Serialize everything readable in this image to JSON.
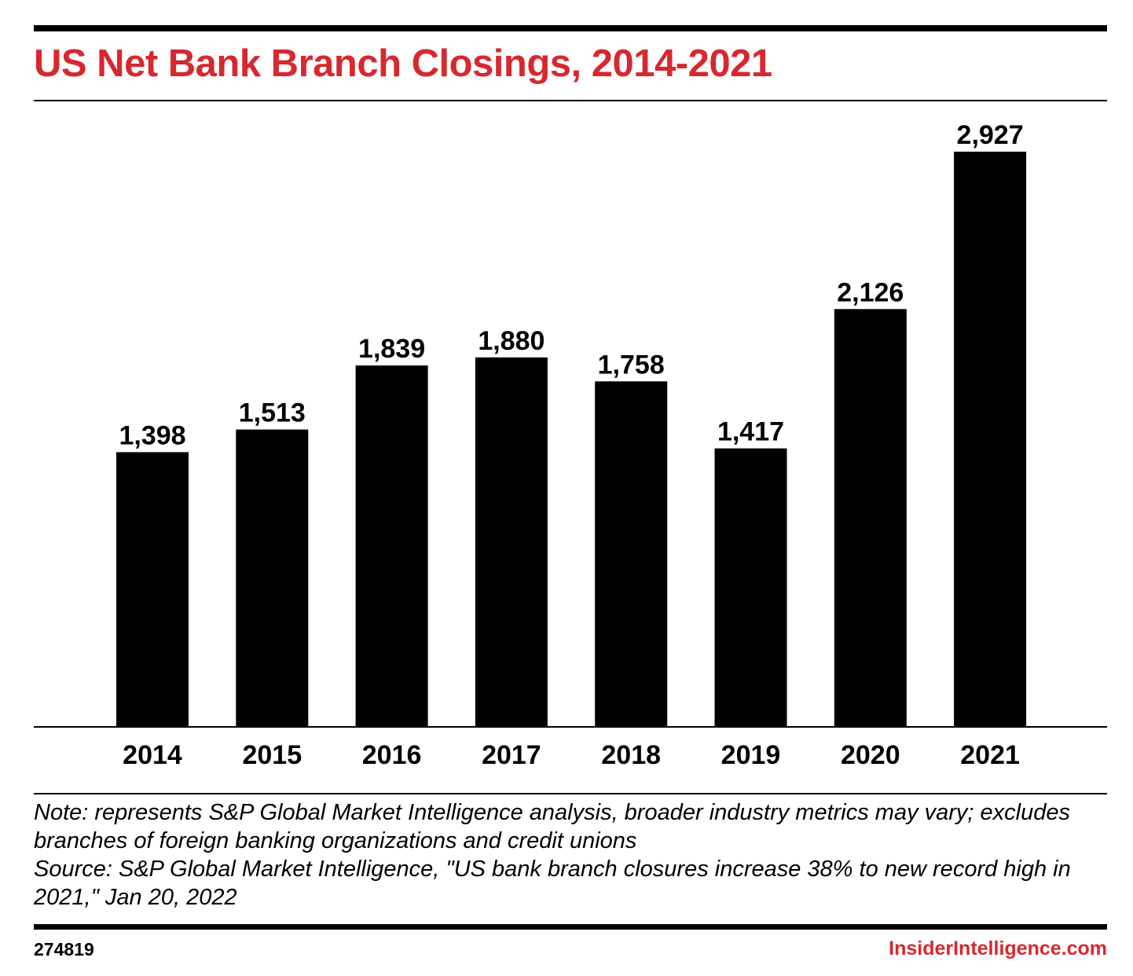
{
  "title": "US Net Bank Branch Closings, 2014-2021",
  "chart_data": {
    "type": "bar",
    "title": "US Net Bank Branch Closings, 2014-2021",
    "categories": [
      "2014",
      "2015",
      "2016",
      "2017",
      "2018",
      "2019",
      "2020",
      "2021"
    ],
    "values": [
      1398,
      1513,
      1839,
      1880,
      1758,
      1417,
      2126,
      2927
    ],
    "value_labels": [
      "1,398",
      "1,513",
      "1,839",
      "1,880",
      "1,758",
      "1,417",
      "2,126",
      "2,927"
    ],
    "xlabel": "",
    "ylabel": "",
    "ylim": [
      0,
      2927
    ],
    "grid": false,
    "legend": "none",
    "bar_color": "#000000"
  },
  "note": "Note: represents S&P Global Market Intelligence analysis, broader industry metrics may vary; excludes branches of foreign banking organizations and credit unions",
  "source": "Source: S&P Global Market Intelligence, \"US bank branch closures increase 38% to new record high in 2021,\" Jan 20, 2022",
  "chart_id": "274819",
  "brand": "InsiderIntelligence.com",
  "colors": {
    "accent": "#d7282f",
    "text": "#000000",
    "background": "#ffffff"
  }
}
